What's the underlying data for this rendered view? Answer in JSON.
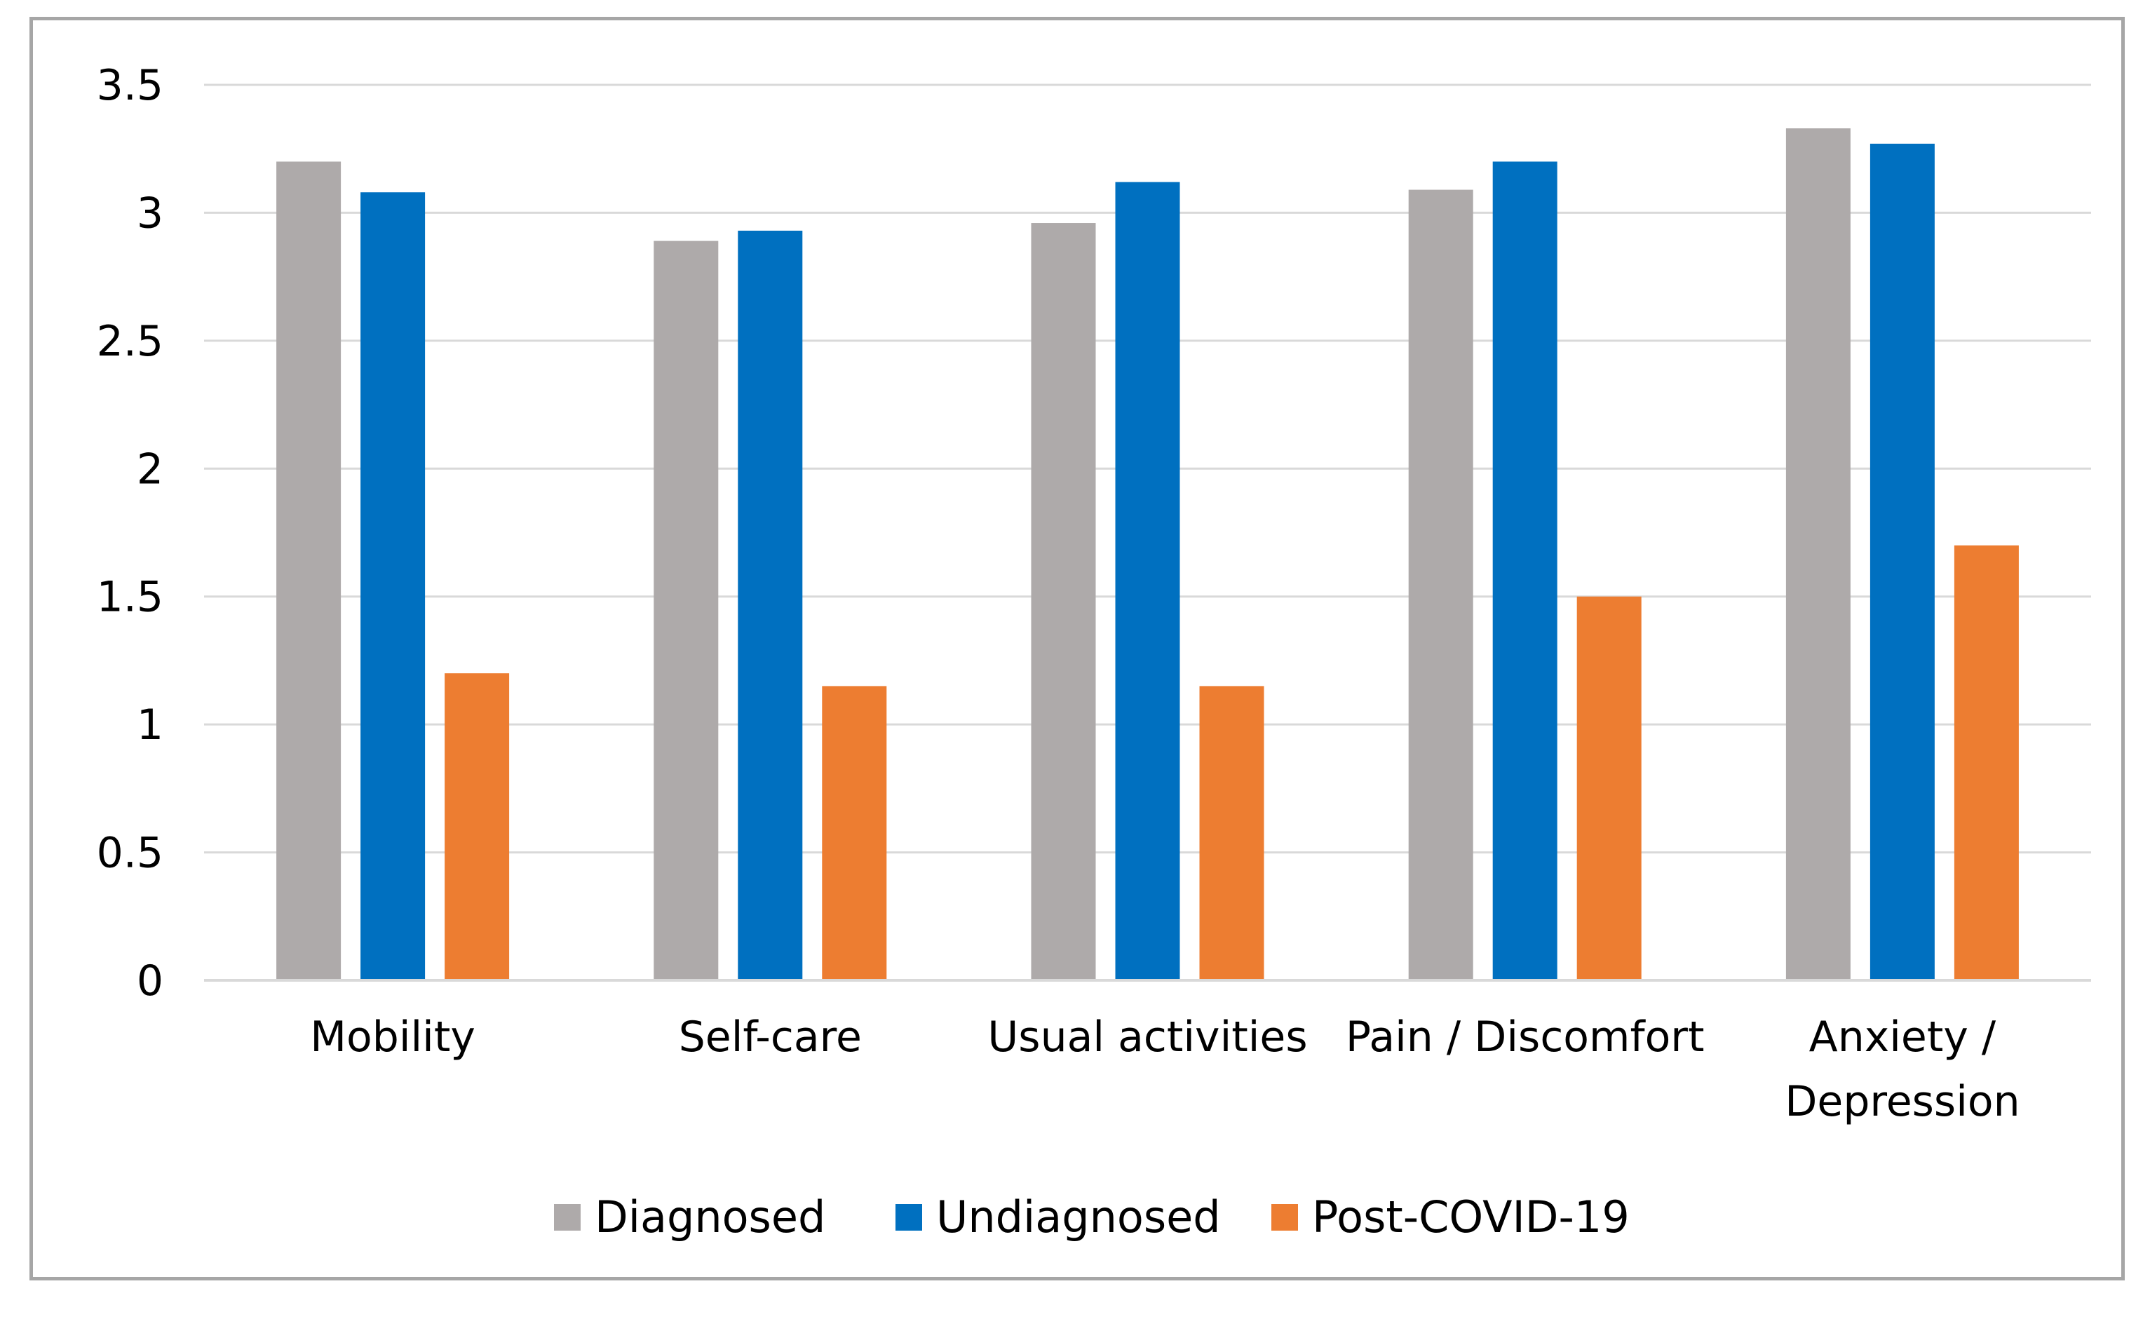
{
  "chart_data": {
    "type": "bar",
    "title": "",
    "xlabel": "",
    "ylabel": "",
    "categories": [
      [
        "Mobility"
      ],
      [
        "Self-care"
      ],
      [
        "Usual activities"
      ],
      [
        "Pain / Discomfort"
      ],
      [
        "Anxiety /",
        "Depression"
      ]
    ],
    "series": [
      {
        "name": "Diagnosed",
        "color": "#aeaaaa",
        "values": [
          3.2,
          2.89,
          2.96,
          3.09,
          3.33
        ]
      },
      {
        "name": "Undiagnosed",
        "color": "#0070c0",
        "values": [
          3.08,
          2.93,
          3.12,
          3.2,
          3.27
        ]
      },
      {
        "name": "Post-COVID-19",
        "color": "#ed7d31",
        "values": [
          1.2,
          1.15,
          1.15,
          1.5,
          1.7
        ]
      }
    ],
    "ylim": [
      0,
      3.5
    ],
    "yticks": [
      "0",
      "0.5",
      "1",
      "1.5",
      "2",
      "2.5",
      "3",
      "3.5"
    ],
    "grid": true,
    "legend": "bottom-center",
    "gridline_color": "#d9d9d9"
  }
}
